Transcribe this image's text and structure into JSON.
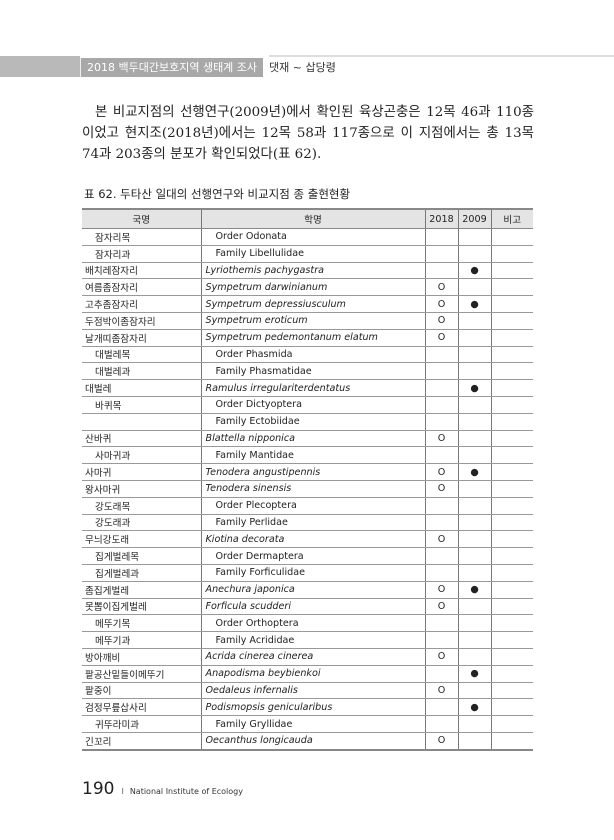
{
  "header": {
    "title": "2018 백두대간보호지역 생태계 조사",
    "section": "댓재 ~ 삽당령"
  },
  "paragraph": "본 비교지점의 선행연구(2009년)에서 확인된 육상곤충은 12목 46과 110종이었고 현지조(2018년)에서는 12목 58과 117종으로 이 지점에서는 총 13목 74과 203종의 분포가 확인되었다(표 62).",
  "table": {
    "caption": "표 62. 두타산 일대의 선행연구와 비교지점 종 출현현황",
    "headers": [
      "국명",
      "학명",
      "2018",
      "2009",
      "비고"
    ],
    "rows": [
      {
        "kn": "잠자리목",
        "sn": "Order Odonata",
        "t": 1,
        "y18": "",
        "y09": ""
      },
      {
        "kn": "잠자리과",
        "sn": "Family Libellulidae",
        "t": 1,
        "y18": "",
        "y09": ""
      },
      {
        "kn": "배치레잠자리",
        "sn": "Lyriothemis pachygastra",
        "t": 0,
        "y18": "",
        "y09": "●"
      },
      {
        "kn": "여름좀잠자리",
        "sn": "Sympetrum darwinianum",
        "t": 0,
        "y18": "O",
        "y09": ""
      },
      {
        "kn": "고추좀잠자리",
        "sn": "Sympetrum depressiusculum",
        "t": 0,
        "y18": "O",
        "y09": "●"
      },
      {
        "kn": "두점박이좀잠자리",
        "sn": "Sympetrum eroticum",
        "t": 0,
        "y18": "O",
        "y09": ""
      },
      {
        "kn": "날개띠좀잠자리",
        "sn": "Sympetrum pedemontanum elatum",
        "t": 0,
        "y18": "O",
        "y09": ""
      },
      {
        "kn": "대벌레목",
        "sn": "Order Phasmida",
        "t": 1,
        "y18": "",
        "y09": ""
      },
      {
        "kn": "대벌레과",
        "sn": "Family Phasmatidae",
        "t": 1,
        "y18": "",
        "y09": ""
      },
      {
        "kn": "대벌레",
        "sn": "Ramulus irregulariterdentatus",
        "t": 0,
        "y18": "",
        "y09": "●"
      },
      {
        "kn": "바퀴목",
        "sn": "Order Dictyoptera",
        "t": 1,
        "y18": "",
        "y09": ""
      },
      {
        "kn": "",
        "sn": "Family Ectobiidae",
        "t": 1,
        "y18": "",
        "y09": ""
      },
      {
        "kn": "산바퀴",
        "sn": "Blattella nipponica",
        "t": 0,
        "y18": "O",
        "y09": ""
      },
      {
        "kn": "사마귀과",
        "sn": "Family Mantidae",
        "t": 1,
        "y18": "",
        "y09": ""
      },
      {
        "kn": "사마귀",
        "sn": "Tenodera angustipennis",
        "t": 0,
        "y18": "O",
        "y09": "●"
      },
      {
        "kn": "왕사마귀",
        "sn": "Tenodera sinensis",
        "t": 0,
        "y18": "O",
        "y09": ""
      },
      {
        "kn": "강도래목",
        "sn": "Order Plecoptera",
        "t": 1,
        "y18": "",
        "y09": ""
      },
      {
        "kn": "강도래과",
        "sn": "Family Perlidae",
        "t": 1,
        "y18": "",
        "y09": ""
      },
      {
        "kn": "무늬강도래",
        "sn": "Kiotina decorata",
        "t": 0,
        "y18": "O",
        "y09": ""
      },
      {
        "kn": "집게벌레목",
        "sn": "Order Dermaptera",
        "t": 1,
        "y18": "",
        "y09": ""
      },
      {
        "kn": "집게벌레과",
        "sn": "Family Forficulidae",
        "t": 1,
        "y18": "",
        "y09": ""
      },
      {
        "kn": "좀집게벌레",
        "sn": "Anechura japonica",
        "t": 0,
        "y18": "O",
        "y09": "●"
      },
      {
        "kn": "못뽑이집게벌레",
        "sn": "Forficula scudderi",
        "t": 0,
        "y18": "O",
        "y09": ""
      },
      {
        "kn": "메뚜기목",
        "sn": "Order Orthoptera",
        "t": 1,
        "y18": "",
        "y09": ""
      },
      {
        "kn": "메뚜기과",
        "sn": "Family Acrididae",
        "t": 1,
        "y18": "",
        "y09": ""
      },
      {
        "kn": "방아깨비",
        "sn": "Acrida cinerea cinerea",
        "t": 0,
        "y18": "O",
        "y09": ""
      },
      {
        "kn": "팥공산밑들이메뚜기",
        "sn": "Anapodisma beybienkoi",
        "t": 0,
        "y18": "",
        "y09": "●"
      },
      {
        "kn": "팥중이",
        "sn": "Oedaleus infernalis",
        "t": 0,
        "y18": "O",
        "y09": ""
      },
      {
        "kn": "검정무릎삽사리",
        "sn": "Podismopsis genicularibus",
        "t": 0,
        "y18": "",
        "y09": "●"
      },
      {
        "kn": "귀뚜라미과",
        "sn": "Family Gryllidae",
        "t": 1,
        "y18": "",
        "y09": ""
      },
      {
        "kn": "긴꼬리",
        "sn": "Oecanthus longicauda",
        "t": 0,
        "y18": "O",
        "y09": ""
      }
    ]
  },
  "footer": {
    "page": "190",
    "separator": "I",
    "publisher": "National Institute of Ecology"
  }
}
